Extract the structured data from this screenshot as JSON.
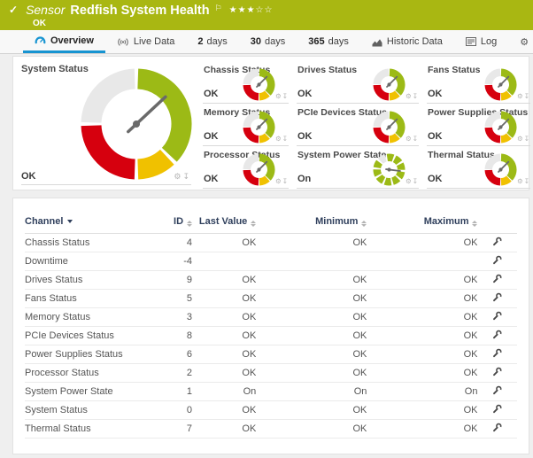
{
  "header": {
    "kind_label": "Sensor",
    "title": "Redfish System Health",
    "status": "OK",
    "rating": {
      "filled": 3,
      "total": 5
    }
  },
  "icons": {
    "check": "✓",
    "flag": "⚐",
    "star_filled": "★",
    "star_empty": "☆",
    "gear": "⚙",
    "download": "↧"
  },
  "colors": {
    "brand_green": "#a9b712",
    "accent_blue": "#1794d1",
    "segment_colors": {
      "gray": "#e8e8e8",
      "green": "#9cba16",
      "yellow": "#f0c100",
      "red": "#d6000e"
    },
    "needle": "#6a6a6a"
  },
  "tabs": [
    {
      "id": "overview",
      "icon": "gauge-icon",
      "label": "Overview",
      "active": true
    },
    {
      "id": "live-data",
      "icon": "live-icon",
      "label": "Live Data"
    },
    {
      "id": "2-days",
      "num": "2",
      "label": "days"
    },
    {
      "id": "30-days",
      "num": "30",
      "label": "days"
    },
    {
      "id": "365-days",
      "num": "365",
      "label": "days"
    },
    {
      "id": "historic-data",
      "icon": "historic-icon",
      "label": "Historic Data"
    },
    {
      "id": "log",
      "icon": "log-icon",
      "label": "Log"
    },
    {
      "id": "settings",
      "icon": "gear-icon",
      "label": "Settings"
    }
  ],
  "gauges": {
    "panel_title": "System Status",
    "quad_segments": [
      [
        "gray",
        272,
        358
      ],
      [
        "green",
        2,
        133
      ],
      [
        "yellow",
        137,
        178
      ],
      [
        "red",
        182,
        268
      ]
    ],
    "dashed_segments": [
      [
        "gray",
        315,
        343
      ],
      [
        "green",
        351,
        379
      ],
      [
        "green",
        27,
        55
      ],
      [
        "green",
        63,
        91
      ],
      [
        "green",
        99,
        127
      ],
      [
        "green",
        135,
        163
      ],
      [
        "green",
        171,
        199
      ],
      [
        "green",
        207,
        235
      ],
      [
        "green",
        243,
        271
      ],
      [
        "green",
        279,
        307
      ]
    ],
    "main": {
      "label": "System Status",
      "value": "OK",
      "gauge": "quad",
      "needle_deg": 47
    },
    "small": [
      {
        "label": "Chassis Status",
        "value": "OK",
        "gauge": "quad",
        "needle_deg": 45
      },
      {
        "label": "Drives Status",
        "value": "OK",
        "gauge": "quad",
        "needle_deg": 45
      },
      {
        "label": "Fans Status",
        "value": "OK",
        "gauge": "quad",
        "needle_deg": 45
      },
      {
        "label": "Memory Status",
        "value": "OK",
        "gauge": "quad",
        "needle_deg": 45
      },
      {
        "label": "PCIe Devices Status",
        "value": "OK",
        "gauge": "quad",
        "needle_deg": 45
      },
      {
        "label": "Power Supplies Status",
        "value": "OK",
        "gauge": "quad",
        "needle_deg": 45
      },
      {
        "label": "Processor Status",
        "value": "OK",
        "gauge": "quad",
        "needle_deg": 45
      },
      {
        "label": "System Power State",
        "value": "On",
        "gauge": "dashed",
        "needle_deg": 97
      },
      {
        "label": "Thermal Status",
        "value": "OK",
        "gauge": "quad",
        "needle_deg": 45
      }
    ]
  },
  "table": {
    "columns": [
      {
        "key": "channel",
        "label": "Channel",
        "sorted": true
      },
      {
        "key": "id",
        "label": "ID",
        "sortable": true
      },
      {
        "key": "last",
        "label": "Last Value",
        "sortable": true
      },
      {
        "key": "min",
        "label": "Minimum",
        "sortable": true
      },
      {
        "key": "max",
        "label": "Maximum",
        "sortable": true
      },
      {
        "key": "actions",
        "label": ""
      }
    ],
    "rows": [
      {
        "channel": "Chassis Status",
        "id": "4",
        "last": "OK",
        "min": "OK",
        "max": "OK"
      },
      {
        "channel": "Downtime",
        "id": "-4",
        "last": "",
        "min": "",
        "max": ""
      },
      {
        "channel": "Drives Status",
        "id": "9",
        "last": "OK",
        "min": "OK",
        "max": "OK"
      },
      {
        "channel": "Fans Status",
        "id": "5",
        "last": "OK",
        "min": "OK",
        "max": "OK"
      },
      {
        "channel": "Memory Status",
        "id": "3",
        "last": "OK",
        "min": "OK",
        "max": "OK"
      },
      {
        "channel": "PCIe Devices Status",
        "id": "8",
        "last": "OK",
        "min": "OK",
        "max": "OK"
      },
      {
        "channel": "Power Supplies Status",
        "id": "6",
        "last": "OK",
        "min": "OK",
        "max": "OK"
      },
      {
        "channel": "Processor Status",
        "id": "2",
        "last": "OK",
        "min": "OK",
        "max": "OK"
      },
      {
        "channel": "System Power State",
        "id": "1",
        "last": "On",
        "min": "On",
        "max": "On"
      },
      {
        "channel": "System Status",
        "id": "0",
        "last": "OK",
        "min": "OK",
        "max": "OK"
      },
      {
        "channel": "Thermal Status",
        "id": "7",
        "last": "OK",
        "min": "OK",
        "max": "OK"
      }
    ]
  }
}
